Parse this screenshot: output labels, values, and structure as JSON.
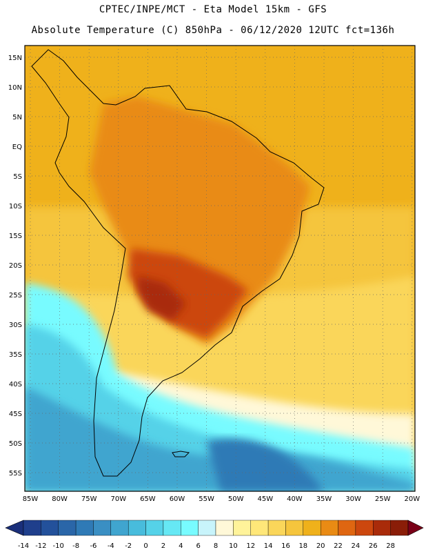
{
  "header": {
    "line1": "CPTEC/INPE/MCT -  Eta Model 15km - GFS",
    "line2": "Absolute Temperature (C) 850hPa - 06/12/2020 12UTC fct=136h"
  },
  "axes": {
    "lat_labels": [
      "15N",
      "10N",
      "5N",
      "EQ",
      "5S",
      "10S",
      "15S",
      "20S",
      "25S",
      "30S",
      "35S",
      "40S",
      "45S",
      "50S",
      "55S"
    ],
    "lon_labels": [
      "85W",
      "80W",
      "75W",
      "70W",
      "65W",
      "60W",
      "55W",
      "50W",
      "45W",
      "40W",
      "35W",
      "30W",
      "25W",
      "20W"
    ]
  },
  "colorbar": {
    "labels": [
      "-14",
      "-12",
      "-10",
      "-8",
      "-6",
      "-4",
      "-2",
      "0",
      "2",
      "4",
      "6",
      "8",
      "10",
      "12",
      "14",
      "16",
      "18",
      "20",
      "22",
      "24",
      "26",
      "28"
    ],
    "colors": [
      "#1f3f8c",
      "#23519b",
      "#2a66a8",
      "#2f7ab6",
      "#3a8fc3",
      "#40a5cf",
      "#48bcdc",
      "#55d2e8",
      "#66e8f4",
      "#78fbff",
      "#c8f4fb",
      "#fff8d8",
      "#fff39a",
      "#ffe779",
      "#fad65a",
      "#f5c53d",
      "#efb11b",
      "#e98b14",
      "#df6611",
      "#cc470e",
      "#a92b0a",
      "#8a1d08"
    ],
    "low_arrow_color": "#1a2f7a",
    "high_arrow_color": "#7a0018"
  },
  "map_palette": {
    "ocean_warm": "#efb11b",
    "subtropical": "#f5c53d",
    "amazon": "#e98b14",
    "hot_core": "#cc470e",
    "hottest": "#a92b0a",
    "mid_lat": "#fad65a",
    "cool_band": "#fff8d8",
    "cold_1": "#78fbff",
    "cold_2": "#55d2e8",
    "cold_3": "#40a5cf",
    "cold_4": "#2f7ab6"
  }
}
